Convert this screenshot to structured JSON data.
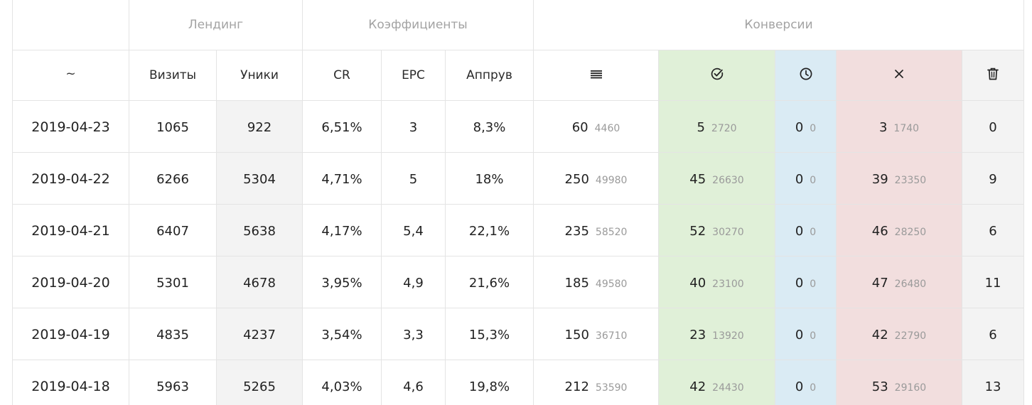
{
  "groups": {
    "landing": "Лендинг",
    "coefficients": "Коэффициенты",
    "conversions": "Конверсии"
  },
  "columns": {
    "date": "~",
    "visits": "Визиты",
    "uniques": "Уники",
    "cr": "CR",
    "epc": "EPC",
    "approve": "Аппрув",
    "total_icon": "list-icon",
    "approved_icon": "check-circle-icon",
    "pending_icon": "clock-icon",
    "rejected_icon": "close-icon",
    "trash_icon": "trash-icon"
  },
  "colors": {
    "approved_bg": "#e0f0d8",
    "pending_bg": "#daebf4",
    "rejected_bg": "#f2dede",
    "neutral_bg": "#f3f3f3"
  },
  "rows": [
    {
      "date": "2019-04-23",
      "visits": "1065",
      "uniques": "922",
      "cr": "6,51%",
      "epc": "3",
      "approve": "8,3%",
      "total": "60",
      "total_sum": "4460",
      "approved": "5",
      "approved_sum": "2720",
      "pending": "0",
      "pending_sum": "0",
      "rejected": "3",
      "rejected_sum": "1740",
      "trash": "0"
    },
    {
      "date": "2019-04-22",
      "visits": "6266",
      "uniques": "5304",
      "cr": "4,71%",
      "epc": "5",
      "approve": "18%",
      "total": "250",
      "total_sum": "49980",
      "approved": "45",
      "approved_sum": "26630",
      "pending": "0",
      "pending_sum": "0",
      "rejected": "39",
      "rejected_sum": "23350",
      "trash": "9"
    },
    {
      "date": "2019-04-21",
      "visits": "6407",
      "uniques": "5638",
      "cr": "4,17%",
      "epc": "5,4",
      "approve": "22,1%",
      "total": "235",
      "total_sum": "58520",
      "approved": "52",
      "approved_sum": "30270",
      "pending": "0",
      "pending_sum": "0",
      "rejected": "46",
      "rejected_sum": "28250",
      "trash": "6"
    },
    {
      "date": "2019-04-20",
      "visits": "5301",
      "uniques": "4678",
      "cr": "3,95%",
      "epc": "4,9",
      "approve": "21,6%",
      "total": "185",
      "total_sum": "49580",
      "approved": "40",
      "approved_sum": "23100",
      "pending": "0",
      "pending_sum": "0",
      "rejected": "47",
      "rejected_sum": "26480",
      "trash": "11"
    },
    {
      "date": "2019-04-19",
      "visits": "4835",
      "uniques": "4237",
      "cr": "3,54%",
      "epc": "3,3",
      "approve": "15,3%",
      "total": "150",
      "total_sum": "36710",
      "approved": "23",
      "approved_sum": "13920",
      "pending": "0",
      "pending_sum": "0",
      "rejected": "42",
      "rejected_sum": "22790",
      "trash": "6"
    },
    {
      "date": "2019-04-18",
      "visits": "5963",
      "uniques": "5265",
      "cr": "4,03%",
      "epc": "4,6",
      "approve": "19,8%",
      "total": "212",
      "total_sum": "53590",
      "approved": "42",
      "approved_sum": "24430",
      "pending": "0",
      "pending_sum": "0",
      "rejected": "53",
      "rejected_sum": "29160",
      "trash": "13"
    }
  ]
}
